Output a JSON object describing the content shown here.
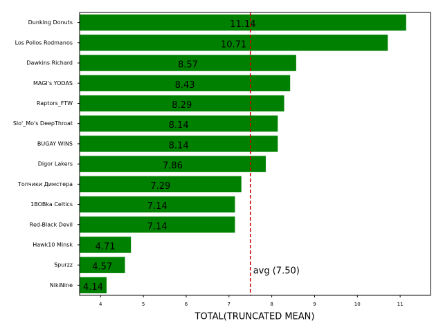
{
  "chart_data": {
    "type": "barh",
    "categories": [
      "Dunking Donuts",
      "Los Pollos Rodmanos",
      "Dawkins Richard",
      "MAGI's YODAS",
      "Raptors_FTW",
      "Slo'_Mo's DeepThroat",
      "BUGAY WINS",
      "Digor Lakers",
      "Топчики Димстера",
      "1BOBka Celtics",
      "Red-Black Devil",
      "Hawk10 Minsk",
      "Spurzz",
      "NikiNine"
    ],
    "values": [
      11.14,
      10.71,
      8.57,
      8.43,
      8.29,
      8.14,
      8.14,
      7.86,
      7.29,
      7.14,
      7.14,
      4.71,
      4.57,
      4.14
    ],
    "color": "#008000",
    "xlabel": "TOTAL(TRUNCATED MEAN)",
    "xlim": [
      3.51,
      11.71
    ],
    "xticks": [
      4,
      5,
      6,
      7,
      8,
      9,
      10,
      11
    ],
    "avg": 7.5,
    "avg_label": "avg (7.50)",
    "avg_color": "#cc0000"
  }
}
